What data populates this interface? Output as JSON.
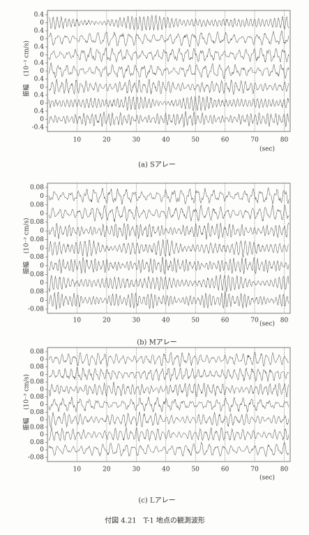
{
  "panels": [
    {
      "caption": "(a)  Sアレー",
      "y_label": "振幅",
      "y_unit": "(10⁻³ cm/s)",
      "x_unit": "(sec)",
      "xlim": [
        0,
        82
      ],
      "xticks": [
        10,
        20,
        30,
        40,
        50,
        60,
        70,
        80
      ],
      "yticks": [
        0.4,
        0,
        0.4,
        0,
        0.4,
        0,
        0.4,
        0,
        0.4,
        0,
        0.4,
        0,
        0.4,
        0,
        -0.4
      ]
    },
    {
      "caption": "(b)  Mアレー",
      "y_label": "振幅",
      "y_unit": "(10⁻³ cm/s)",
      "x_unit": "(sec)",
      "xlim": [
        0,
        82
      ],
      "xticks": [
        10,
        20,
        30,
        40,
        50,
        60,
        70,
        80
      ],
      "yticks": [
        0.08,
        0,
        0.08,
        0,
        0.08,
        0,
        0.08,
        0,
        0.08,
        0,
        0.08,
        0,
        0.08,
        0,
        -0.08
      ]
    },
    {
      "caption": "(c)  Lアレー",
      "y_label": "振幅",
      "y_unit": "(10⁻³ cm/s)",
      "x_unit": "(sec)",
      "xlim": [
        0,
        82
      ],
      "xticks": [
        10,
        20,
        30,
        40,
        50,
        60,
        70,
        80
      ],
      "yticks": [
        0.08,
        0,
        0.08,
        0,
        0.08,
        0,
        0.08,
        0,
        0.08,
        0,
        0.08,
        0,
        0.08,
        0,
        -0.08
      ]
    }
  ],
  "figure_caption": "付図 4.21　T-1 地点の観測波形"
}
